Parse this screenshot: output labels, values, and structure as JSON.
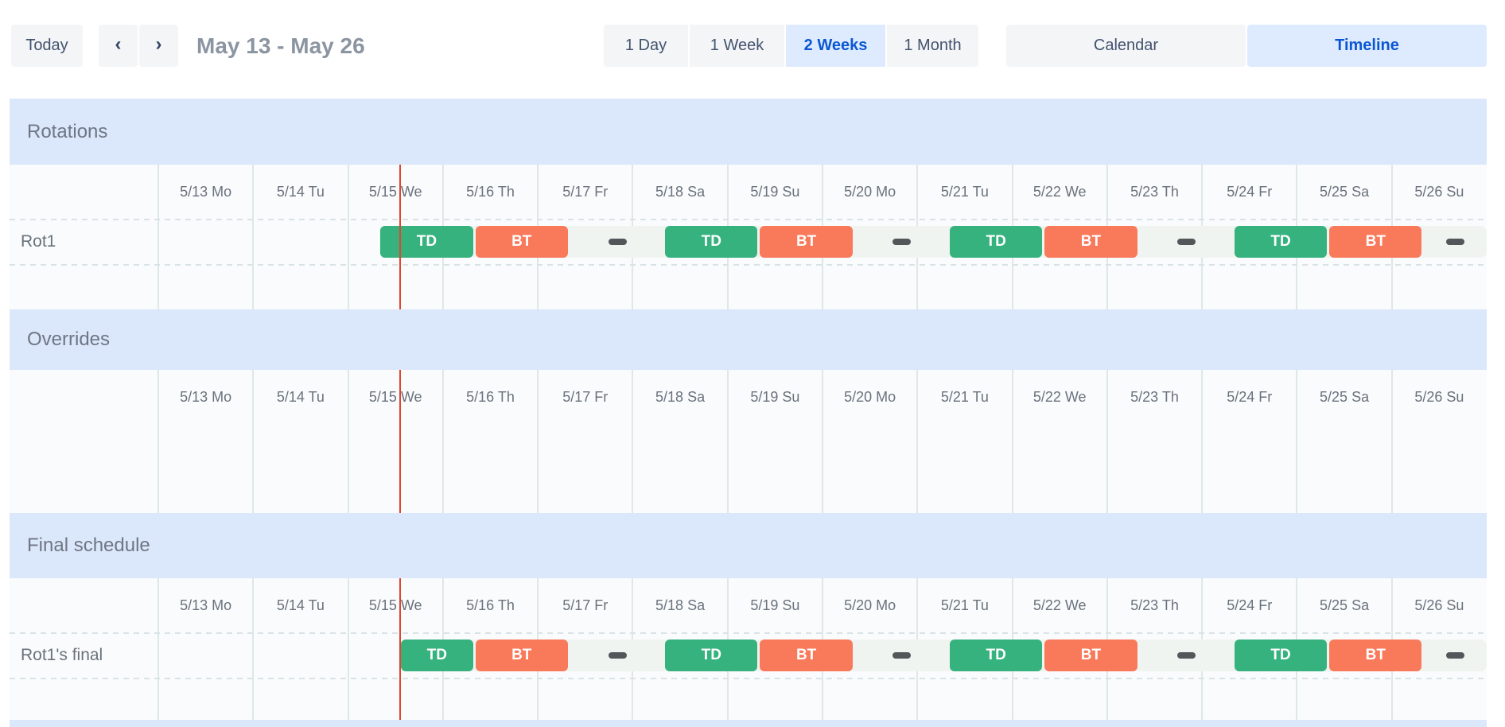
{
  "toolbar": {
    "today": "Today",
    "prev_icon": "‹",
    "next_icon": "›",
    "range_title": "May 13 - May 26",
    "views": [
      {
        "label": "1 Day",
        "selected": false
      },
      {
        "label": "1 Week",
        "selected": false
      },
      {
        "label": "2 Weeks",
        "selected": true
      },
      {
        "label": "1 Month",
        "selected": false
      }
    ],
    "modes": [
      {
        "label": "Calendar",
        "selected": false
      },
      {
        "label": "Timeline",
        "selected": true
      }
    ]
  },
  "timeline": {
    "day_labels": [
      "5/13 Mo",
      "5/14 Tu",
      "5/15 We",
      "5/16 Th",
      "5/17 Fr",
      "5/18 Sa",
      "5/19 Su",
      "5/20 Mo",
      "5/21 Tu",
      "5/22 We",
      "5/23 Th",
      "5/24 Fr",
      "5/25 Sa",
      "5/26 Su"
    ],
    "days_shown": 14,
    "now_day": 2.548
  },
  "palette": {
    "selected_bg": "#DEEBFF",
    "selected_text": "#0B57D3",
    "section_header_bg": "#DBE7FA",
    "shift_green": "#36B27E",
    "shift_orange": "#F9795B",
    "gap_dash": "#53575A",
    "now_line": "#E0462E",
    "strip_bg": "#EFF4F1"
  },
  "sections": [
    {
      "title": "Rotations",
      "rows": [
        {
          "label": "Rot1",
          "strip": {
            "start": 2.3333,
            "end": 14
          },
          "segments": [
            {
              "kind": "shift",
              "label": "TD",
              "color": "green",
              "start": 2.3333,
              "end": 3.3333
            },
            {
              "kind": "shift",
              "label": "BT",
              "color": "orange",
              "start": 3.3333,
              "end": 4.3333
            },
            {
              "kind": "gap",
              "start": 4.3333,
              "end": 5.3333
            },
            {
              "kind": "shift",
              "label": "TD",
              "color": "green",
              "start": 5.3333,
              "end": 6.3333
            },
            {
              "kind": "shift",
              "label": "BT",
              "color": "orange",
              "start": 6.3333,
              "end": 7.3333
            },
            {
              "kind": "gap",
              "start": 7.3333,
              "end": 8.3333
            },
            {
              "kind": "shift",
              "label": "TD",
              "color": "green",
              "start": 8.3333,
              "end": 9.3333
            },
            {
              "kind": "shift",
              "label": "BT",
              "color": "orange",
              "start": 9.3333,
              "end": 10.3333
            },
            {
              "kind": "gap",
              "start": 10.3333,
              "end": 11.3333
            },
            {
              "kind": "shift",
              "label": "TD",
              "color": "green",
              "start": 11.3333,
              "end": 12.3333
            },
            {
              "kind": "shift",
              "label": "BT",
              "color": "orange",
              "start": 12.3333,
              "end": 13.3333
            },
            {
              "kind": "gap",
              "start": 13.3333,
              "end": 14
            }
          ]
        }
      ]
    },
    {
      "title": "Overrides",
      "rows": []
    },
    {
      "title": "Final schedule",
      "rows": [
        {
          "label": "Rot1's final",
          "strip": {
            "start": 2.548,
            "end": 14
          },
          "segments": [
            {
              "kind": "shift",
              "label": "TD",
              "color": "green",
              "start": 2.548,
              "end": 3.3333
            },
            {
              "kind": "shift",
              "label": "BT",
              "color": "orange",
              "start": 3.3333,
              "end": 4.3333
            },
            {
              "kind": "gap",
              "start": 4.3333,
              "end": 5.3333
            },
            {
              "kind": "shift",
              "label": "TD",
              "color": "green",
              "start": 5.3333,
              "end": 6.3333
            },
            {
              "kind": "shift",
              "label": "BT",
              "color": "orange",
              "start": 6.3333,
              "end": 7.3333
            },
            {
              "kind": "gap",
              "start": 7.3333,
              "end": 8.3333
            },
            {
              "kind": "shift",
              "label": "TD",
              "color": "green",
              "start": 8.3333,
              "end": 9.3333
            },
            {
              "kind": "shift",
              "label": "BT",
              "color": "orange",
              "start": 9.3333,
              "end": 10.3333
            },
            {
              "kind": "gap",
              "start": 10.3333,
              "end": 11.3333
            },
            {
              "kind": "shift",
              "label": "TD",
              "color": "green",
              "start": 11.3333,
              "end": 12.3333
            },
            {
              "kind": "shift",
              "label": "BT",
              "color": "orange",
              "start": 12.3333,
              "end": 13.3333
            },
            {
              "kind": "gap",
              "start": 13.3333,
              "end": 14
            }
          ]
        }
      ]
    }
  ]
}
